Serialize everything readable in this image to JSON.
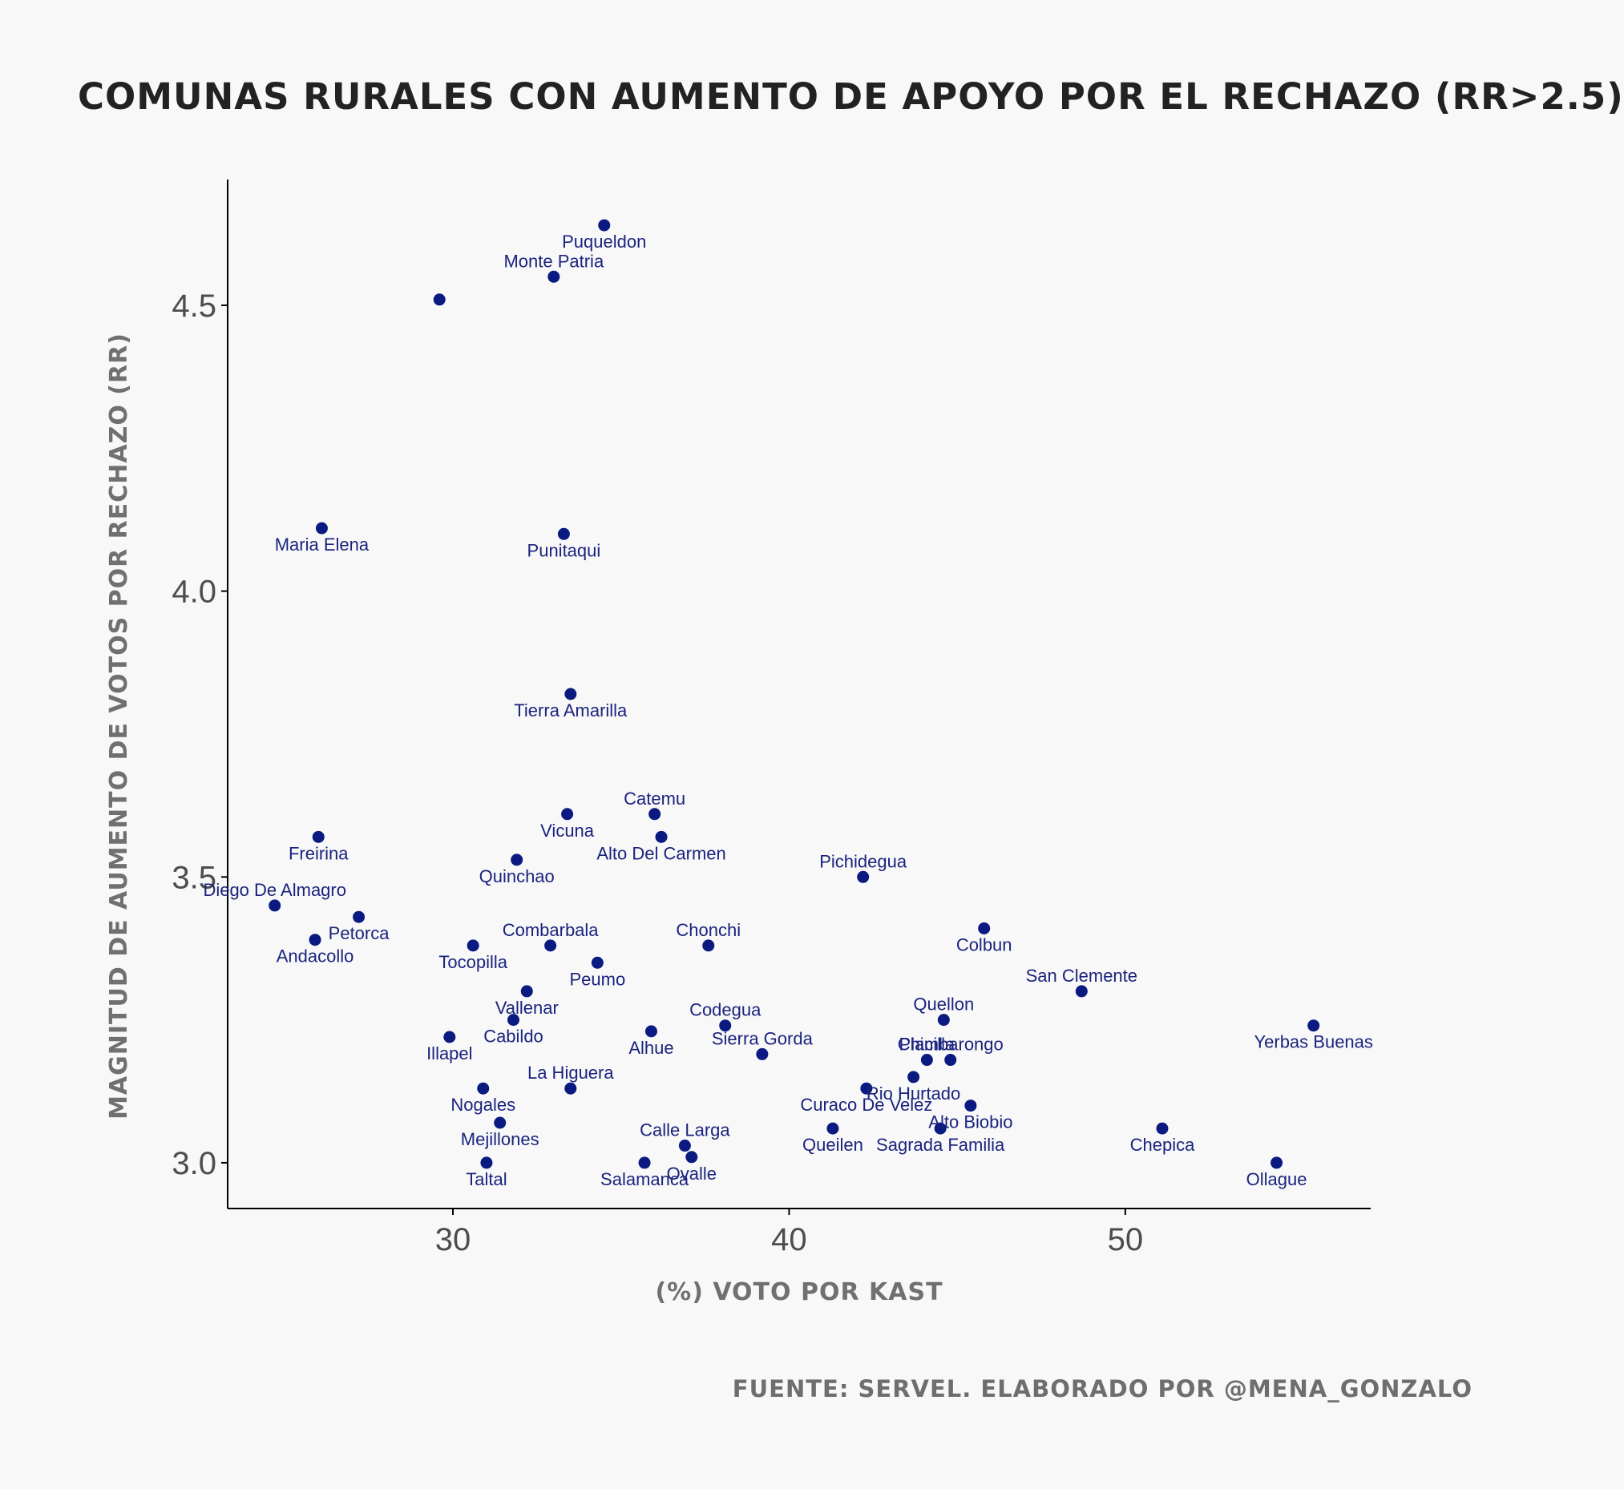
{
  "title": "COMUNAS RURALES CON AUMENTO DE APOYO POR EL RECHAZO (RR>2.5)",
  "source": "FUENTE: SERVEL. ELABORADO POR @MENA_GONZALO",
  "colors": {
    "background": "#f8f8f8",
    "point": "#0b1a80",
    "label": "#1a237e",
    "axis": "#000000"
  },
  "chart_data": {
    "type": "scatter",
    "title": "COMUNAS RURALES CON AUMENTO DE APOYO POR EL RECHAZO (RR>2.5)",
    "xlabel": "(%) VOTO POR KAST",
    "ylabel": "MAGNITUD DE AUMENTO DE VOTOS POR RECHAZO (RR)",
    "xlim": [
      23.3,
      57.3
    ],
    "ylim": [
      2.92,
      4.72
    ],
    "xticks": [
      30,
      40,
      50
    ],
    "yticks": [
      3.0,
      3.5,
      4.0,
      4.5
    ],
    "xtick_labels": [
      "30",
      "40",
      "50"
    ],
    "ytick_labels": [
      "3.0",
      "3.5",
      "4.0",
      "4.5"
    ],
    "grid": false,
    "points": [
      {
        "x": 34.5,
        "y": 4.64,
        "label": "Puqueldon",
        "pos": "below"
      },
      {
        "x": 33.0,
        "y": 4.55,
        "label": "Monte Patria",
        "pos": "above"
      },
      {
        "x": 29.6,
        "y": 4.51,
        "label": "",
        "pos": "none"
      },
      {
        "x": 26.1,
        "y": 4.11,
        "label": "Maria Elena",
        "pos": "below"
      },
      {
        "x": 33.3,
        "y": 4.1,
        "label": "Punitaqui",
        "pos": "below"
      },
      {
        "x": 33.5,
        "y": 3.82,
        "label": "Tierra Amarilla",
        "pos": "below"
      },
      {
        "x": 33.4,
        "y": 3.61,
        "label": "Vicuna",
        "pos": "below"
      },
      {
        "x": 36.0,
        "y": 3.61,
        "label": "Catemu",
        "pos": "above"
      },
      {
        "x": 36.2,
        "y": 3.57,
        "label": "Alto Del Carmen",
        "pos": "below"
      },
      {
        "x": 26.0,
        "y": 3.57,
        "label": "Freirina",
        "pos": "below"
      },
      {
        "x": 31.9,
        "y": 3.53,
        "label": "Quinchao",
        "pos": "below"
      },
      {
        "x": 42.2,
        "y": 3.5,
        "label": "Pichidegua",
        "pos": "above"
      },
      {
        "x": 24.7,
        "y": 3.45,
        "label": "Diego De Almagro",
        "pos": "above"
      },
      {
        "x": 27.2,
        "y": 3.43,
        "label": "Petorca",
        "pos": "below"
      },
      {
        "x": 45.8,
        "y": 3.41,
        "label": "Colbun",
        "pos": "below"
      },
      {
        "x": 25.9,
        "y": 3.39,
        "label": "Andacollo",
        "pos": "below"
      },
      {
        "x": 30.6,
        "y": 3.38,
        "label": "Tocopilla",
        "pos": "below"
      },
      {
        "x": 32.9,
        "y": 3.38,
        "label": "Combarbala",
        "pos": "above"
      },
      {
        "x": 37.6,
        "y": 3.38,
        "label": "Chonchi",
        "pos": "above"
      },
      {
        "x": 34.3,
        "y": 3.35,
        "label": "Peumo",
        "pos": "below"
      },
      {
        "x": 48.7,
        "y": 3.3,
        "label": "San Clemente",
        "pos": "above"
      },
      {
        "x": 32.2,
        "y": 3.3,
        "label": "Vallenar",
        "pos": "below"
      },
      {
        "x": 44.6,
        "y": 3.25,
        "label": "Quellon",
        "pos": "above"
      },
      {
        "x": 31.8,
        "y": 3.25,
        "label": "Cabildo",
        "pos": "below"
      },
      {
        "x": 55.6,
        "y": 3.24,
        "label": "Yerbas Buenas",
        "pos": "below"
      },
      {
        "x": 38.1,
        "y": 3.24,
        "label": "Codegua",
        "pos": "above"
      },
      {
        "x": 35.9,
        "y": 3.23,
        "label": "Alhue",
        "pos": "below"
      },
      {
        "x": 29.9,
        "y": 3.22,
        "label": "Illapel",
        "pos": "below"
      },
      {
        "x": 39.2,
        "y": 3.19,
        "label": "Sierra Gorda",
        "pos": "above"
      },
      {
        "x": 44.1,
        "y": 3.18,
        "label": "Placilla",
        "pos": "above"
      },
      {
        "x": 44.8,
        "y": 3.18,
        "label": "Chimbarongo",
        "pos": "above"
      },
      {
        "x": 43.7,
        "y": 3.15,
        "label": "Rio Hurtado",
        "pos": "below"
      },
      {
        "x": 42.3,
        "y": 3.13,
        "label": "Curaco De Velez",
        "pos": "below"
      },
      {
        "x": 33.5,
        "y": 3.13,
        "label": "La Higuera",
        "pos": "above"
      },
      {
        "x": 30.9,
        "y": 3.13,
        "label": "Nogales",
        "pos": "below"
      },
      {
        "x": 45.4,
        "y": 3.1,
        "label": "Alto Biobio",
        "pos": "below"
      },
      {
        "x": 31.4,
        "y": 3.07,
        "label": "Mejillones",
        "pos": "below"
      },
      {
        "x": 51.1,
        "y": 3.06,
        "label": "Chepica",
        "pos": "below"
      },
      {
        "x": 41.3,
        "y": 3.06,
        "label": "Queilen",
        "pos": "below"
      },
      {
        "x": 44.5,
        "y": 3.06,
        "label": "Sagrada Familia",
        "pos": "below"
      },
      {
        "x": 36.9,
        "y": 3.03,
        "label": "Calle Larga",
        "pos": "above"
      },
      {
        "x": 37.1,
        "y": 3.01,
        "label": "Ovalle",
        "pos": "below"
      },
      {
        "x": 35.7,
        "y": 3.0,
        "label": "Salamanca",
        "pos": "below"
      },
      {
        "x": 31.0,
        "y": 3.0,
        "label": "Taltal",
        "pos": "below"
      },
      {
        "x": 54.5,
        "y": 3.0,
        "label": "Ollague",
        "pos": "below"
      }
    ]
  }
}
